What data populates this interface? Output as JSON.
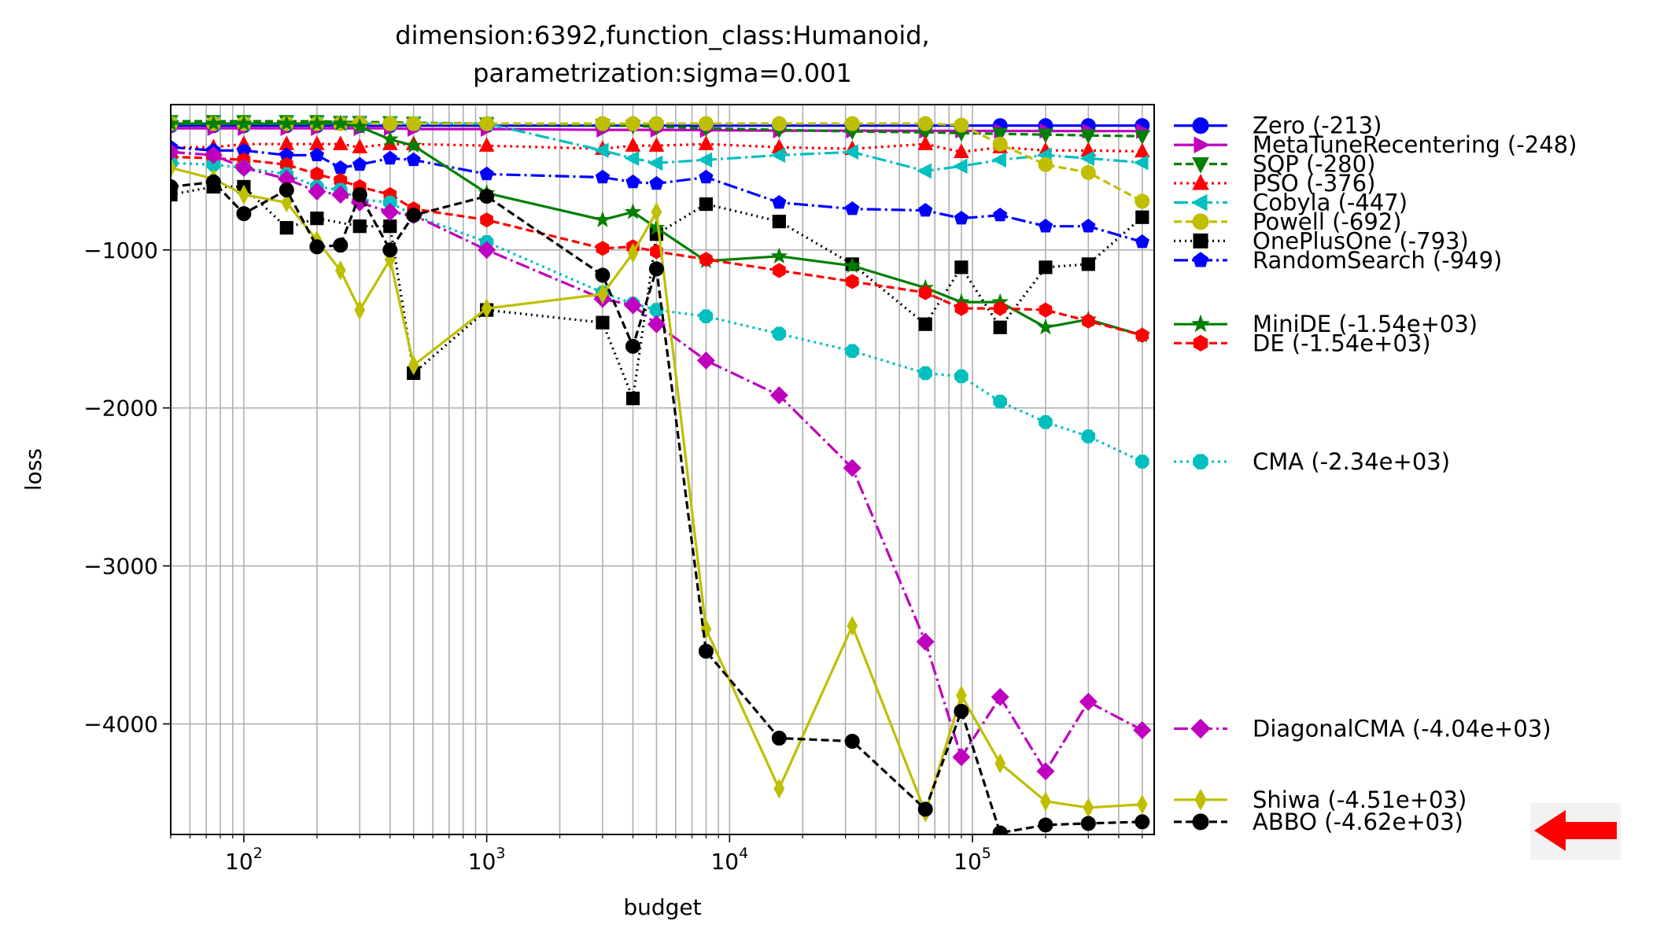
{
  "chart_data": {
    "type": "line",
    "title_lines": [
      "dimension:6392,function_class:Humanoid,",
      "parametrization:sigma=0.001"
    ],
    "xlabel": "budget",
    "ylabel": "loss",
    "xscale": "log",
    "xlim": [
      50,
      560000
    ],
    "ylim": [
      -4700,
      -80
    ],
    "grid": true,
    "x_ticks": [
      {
        "value": 100,
        "base": "10",
        "exp": "2"
      },
      {
        "value": 1000,
        "base": "10",
        "exp": "3"
      },
      {
        "value": 10000,
        "base": "10",
        "exp": "4"
      },
      {
        "value": 100000,
        "base": "10",
        "exp": "5"
      }
    ],
    "y_ticks": [
      {
        "value": -1000,
        "label": "−1000"
      },
      {
        "value": -2000,
        "label": "−2000"
      },
      {
        "value": -3000,
        "label": "−3000"
      },
      {
        "value": -4000,
        "label": "−4000"
      }
    ],
    "legend_position": "outside-right",
    "series": [
      {
        "name": "Zero",
        "legend": "Zero (-213)",
        "color": "#0000ff",
        "dash": "",
        "marker": "circle",
        "legend_y": -213,
        "x": [
          50,
          75,
          100,
          150,
          200,
          300,
          400,
          500,
          1000,
          3000,
          5000,
          8000,
          16000,
          32000,
          64000,
          90000,
          130000,
          200000,
          300000,
          500000
        ],
        "y": [
          -213,
          -213,
          -213,
          -213,
          -213,
          -213,
          -213,
          -213,
          -213,
          -213,
          -213,
          -213,
          -213,
          -213,
          -213,
          -213,
          -213,
          -213,
          -213,
          -213
        ]
      },
      {
        "name": "MetaTuneRecentering",
        "legend": "MetaTuneRecentering (-248)",
        "color": "#bf00bf",
        "dash": "",
        "marker": "triangle-right",
        "legend_y": -335,
        "x": [
          50,
          75,
          100,
          150,
          200,
          300,
          400,
          500,
          1000,
          3000,
          5000,
          8000,
          16000,
          32000,
          64000,
          90000,
          130000,
          200000,
          300000,
          500000
        ],
        "y": [
          -230,
          -230,
          -230,
          -230,
          -230,
          -230,
          -230,
          -235,
          -235,
          -240,
          -240,
          -242,
          -245,
          -245,
          -246,
          -246,
          -247,
          -247,
          -248,
          -248
        ]
      },
      {
        "name": "SQP",
        "legend": "SQP (-280)",
        "color": "#007f00",
        "dash": "10,5",
        "marker": "triangle-down",
        "legend_y": -456,
        "x": [
          50,
          75,
          100,
          150,
          200,
          250,
          300,
          400,
          500,
          1000,
          3000,
          4000,
          5000,
          8000,
          16000,
          32000,
          64000,
          90000,
          130000,
          200000,
          300000,
          500000
        ],
        "y": [
          -185,
          -185,
          -185,
          -185,
          -185,
          -190,
          -190,
          -192,
          -195,
          -200,
          -210,
          -215,
          -220,
          -230,
          -240,
          -250,
          -255,
          -260,
          -265,
          -270,
          -275,
          -280
        ]
      },
      {
        "name": "PSO",
        "legend": "PSO (-376)",
        "color": "#ff0000",
        "dash": "3,5",
        "marker": "triangle-up",
        "legend_y": -578,
        "x": [
          50,
          75,
          100,
          150,
          200,
          250,
          300,
          400,
          500,
          1000,
          3000,
          4000,
          5000,
          8000,
          16000,
          32000,
          64000,
          90000,
          130000,
          200000,
          300000,
          500000
        ],
        "y": [
          -350,
          -350,
          -330,
          -330,
          -330,
          -330,
          -350,
          -330,
          -330,
          -340,
          -360,
          -340,
          -340,
          -330,
          -350,
          -360,
          -330,
          -380,
          -350,
          -370,
          -370,
          -376
        ]
      },
      {
        "name": "Cobyla",
        "legend": "Cobyla (-447)",
        "color": "#00bfbf",
        "dash": "18,5,3,5",
        "marker": "triangle-left",
        "legend_y": -700,
        "x": [
          50,
          75,
          100,
          150,
          200,
          250,
          300,
          400,
          500,
          1000,
          3000,
          4000,
          5000,
          8000,
          16000,
          32000,
          64000,
          90000,
          130000,
          200000,
          300000,
          500000
        ],
        "y": [
          -200,
          -200,
          -200,
          -200,
          -200,
          -200,
          -200,
          -200,
          -200,
          -200,
          -370,
          -420,
          -450,
          -430,
          -400,
          -380,
          -500,
          -470,
          -430,
          -400,
          -420,
          -447
        ]
      },
      {
        "name": "Powell",
        "legend": "Powell (-692)",
        "color": "#bfbf00",
        "dash": "10,5",
        "marker": "circle",
        "legend_y": -821,
        "x": [
          50,
          75,
          100,
          150,
          200,
          250,
          300,
          400,
          500,
          1000,
          3000,
          4000,
          5000,
          8000,
          16000,
          32000,
          64000,
          90000,
          130000,
          200000,
          300000,
          500000
        ],
        "y": [
          -200,
          -200,
          -200,
          -200,
          -200,
          -200,
          -200,
          -200,
          -200,
          -200,
          -200,
          -200,
          -200,
          -200,
          -200,
          -200,
          -200,
          -210,
          -330,
          -460,
          -510,
          -692
        ]
      },
      {
        "name": "OnePlusOne",
        "legend": "OnePlusOne (-793)",
        "color": "#000000",
        "dash": "2,5",
        "marker": "square",
        "legend_y": -943,
        "x": [
          50,
          75,
          100,
          150,
          200,
          300,
          400,
          500,
          1000,
          3000,
          4000,
          5000,
          8000,
          16000,
          32000,
          64000,
          90000,
          130000,
          200000,
          300000,
          500000
        ],
        "y": [
          -650,
          -600,
          -600,
          -860,
          -800,
          -850,
          -850,
          -1780,
          -1380,
          -1460,
          -1940,
          -900,
          -710,
          -820,
          -1090,
          -1470,
          -1110,
          -1490,
          -1110,
          -1090,
          -793
        ]
      },
      {
        "name": "RandomSearch",
        "legend": "RandomSearch (-949)",
        "color": "#0000ff",
        "dash": "18,5,3,5",
        "marker": "pentagon",
        "legend_y": -1065,
        "x": [
          50,
          75,
          100,
          150,
          200,
          250,
          300,
          400,
          500,
          1000,
          3000,
          4000,
          5000,
          8000,
          16000,
          32000,
          64000,
          90000,
          130000,
          200000,
          300000,
          500000
        ],
        "y": [
          -350,
          -370,
          -370,
          -400,
          -400,
          -480,
          -460,
          -420,
          -430,
          -520,
          -540,
          -570,
          -580,
          -540,
          -700,
          -740,
          -750,
          -800,
          -780,
          -850,
          -850,
          -949
        ]
      },
      {
        "name": "MiniDE",
        "legend": "MiniDE (-1.54e+03)",
        "color": "#007f00",
        "dash": "",
        "marker": "star",
        "legend_y": -1470,
        "x": [
          50,
          75,
          100,
          150,
          200,
          250,
          300,
          400,
          500,
          1000,
          3000,
          4000,
          5000,
          8000,
          16000,
          32000,
          64000,
          90000,
          130000,
          200000,
          300000,
          500000
        ],
        "y": [
          -200,
          -200,
          -200,
          -200,
          -200,
          -200,
          -220,
          -300,
          -340,
          -640,
          -810,
          -760,
          -860,
          -1070,
          -1040,
          -1100,
          -1240,
          -1330,
          -1330,
          -1490,
          -1440,
          -1540
        ]
      },
      {
        "name": "DE",
        "legend": "DE (-1.54e+03)",
        "color": "#ff0000",
        "dash": "10,5",
        "marker": "hexagon",
        "legend_y": -1590,
        "x": [
          50,
          75,
          100,
          150,
          200,
          250,
          300,
          400,
          500,
          1000,
          3000,
          4000,
          5000,
          8000,
          16000,
          32000,
          64000,
          90000,
          130000,
          200000,
          300000,
          500000
        ],
        "y": [
          -410,
          -420,
          -430,
          -460,
          -520,
          -560,
          -600,
          -650,
          -740,
          -810,
          -990,
          -980,
          -1010,
          -1060,
          -1130,
          -1200,
          -1270,
          -1370,
          -1370,
          -1380,
          -1450,
          -1540
        ]
      },
      {
        "name": "CMA",
        "legend": "CMA (-2.34e+03)",
        "color": "#00bfbf",
        "dash": "3,5",
        "marker": "octagon",
        "legend_y": -2340,
        "x": [
          50,
          75,
          100,
          150,
          200,
          250,
          300,
          400,
          500,
          1000,
          3000,
          4000,
          5000,
          8000,
          16000,
          32000,
          64000,
          90000,
          130000,
          200000,
          300000,
          500000
        ],
        "y": [
          -450,
          -460,
          -480,
          -520,
          -600,
          -620,
          -680,
          -700,
          -780,
          -950,
          -1270,
          -1340,
          -1380,
          -1420,
          -1530,
          -1640,
          -1780,
          -1800,
          -1960,
          -2090,
          -2180,
          -2340
        ]
      },
      {
        "name": "DiagonalCMA",
        "legend": "DiagonalCMA (-4.04e+03)",
        "color": "#bf00bf",
        "dash": "18,5,3,5",
        "marker": "diamond",
        "legend_y": -4030,
        "x": [
          50,
          75,
          100,
          150,
          200,
          250,
          300,
          400,
          500,
          1000,
          3000,
          4000,
          5000,
          8000,
          16000,
          32000,
          64000,
          90000,
          130000,
          200000,
          300000,
          500000
        ],
        "y": [
          -380,
          -400,
          -480,
          -550,
          -630,
          -650,
          -700,
          -760,
          -780,
          -1000,
          -1310,
          -1350,
          -1470,
          -1700,
          -1920,
          -2380,
          -3480,
          -4210,
          -3830,
          -4300,
          -3860,
          -4040
        ]
      },
      {
        "name": "Shiwa",
        "legend": "Shiwa (-4.51e+03)",
        "color": "#bfbf00",
        "dash": "",
        "marker": "thin-diamond",
        "legend_y": -4480,
        "x": [
          50,
          75,
          100,
          150,
          200,
          250,
          300,
          400,
          500,
          1000,
          3000,
          4000,
          5000,
          8000,
          16000,
          32000,
          64000,
          90000,
          130000,
          200000,
          300000,
          500000
        ],
        "y": [
          -480,
          -550,
          -650,
          -700,
          -940,
          -1130,
          -1380,
          -1060,
          -1730,
          -1370,
          -1280,
          -1020,
          -760,
          -3400,
          -4410,
          -3380,
          -4560,
          -3820,
          -4250,
          -4490,
          -4530,
          -4510
        ]
      },
      {
        "name": "ABBO",
        "legend": "ABBO (-4.62e+03)",
        "color": "#000000",
        "dash": "10,5",
        "marker": "circle",
        "legend_y": -4620,
        "x": [
          50,
          75,
          100,
          150,
          200,
          250,
          300,
          400,
          500,
          1000,
          3000,
          4000,
          5000,
          8000,
          16000,
          32000,
          64000,
          90000,
          130000,
          200000,
          300000,
          500000
        ],
        "y": [
          -600,
          -570,
          -770,
          -620,
          -980,
          -970,
          -650,
          -1000,
          -780,
          -660,
          -1160,
          -1610,
          -1120,
          -3540,
          -4090,
          -4110,
          -4540,
          -3920,
          -4690,
          -4640,
          -4630,
          -4620
        ]
      }
    ],
    "annotation": {
      "type": "arrow",
      "direction": "left",
      "color": "#ff0000",
      "target": "ABBO"
    }
  }
}
